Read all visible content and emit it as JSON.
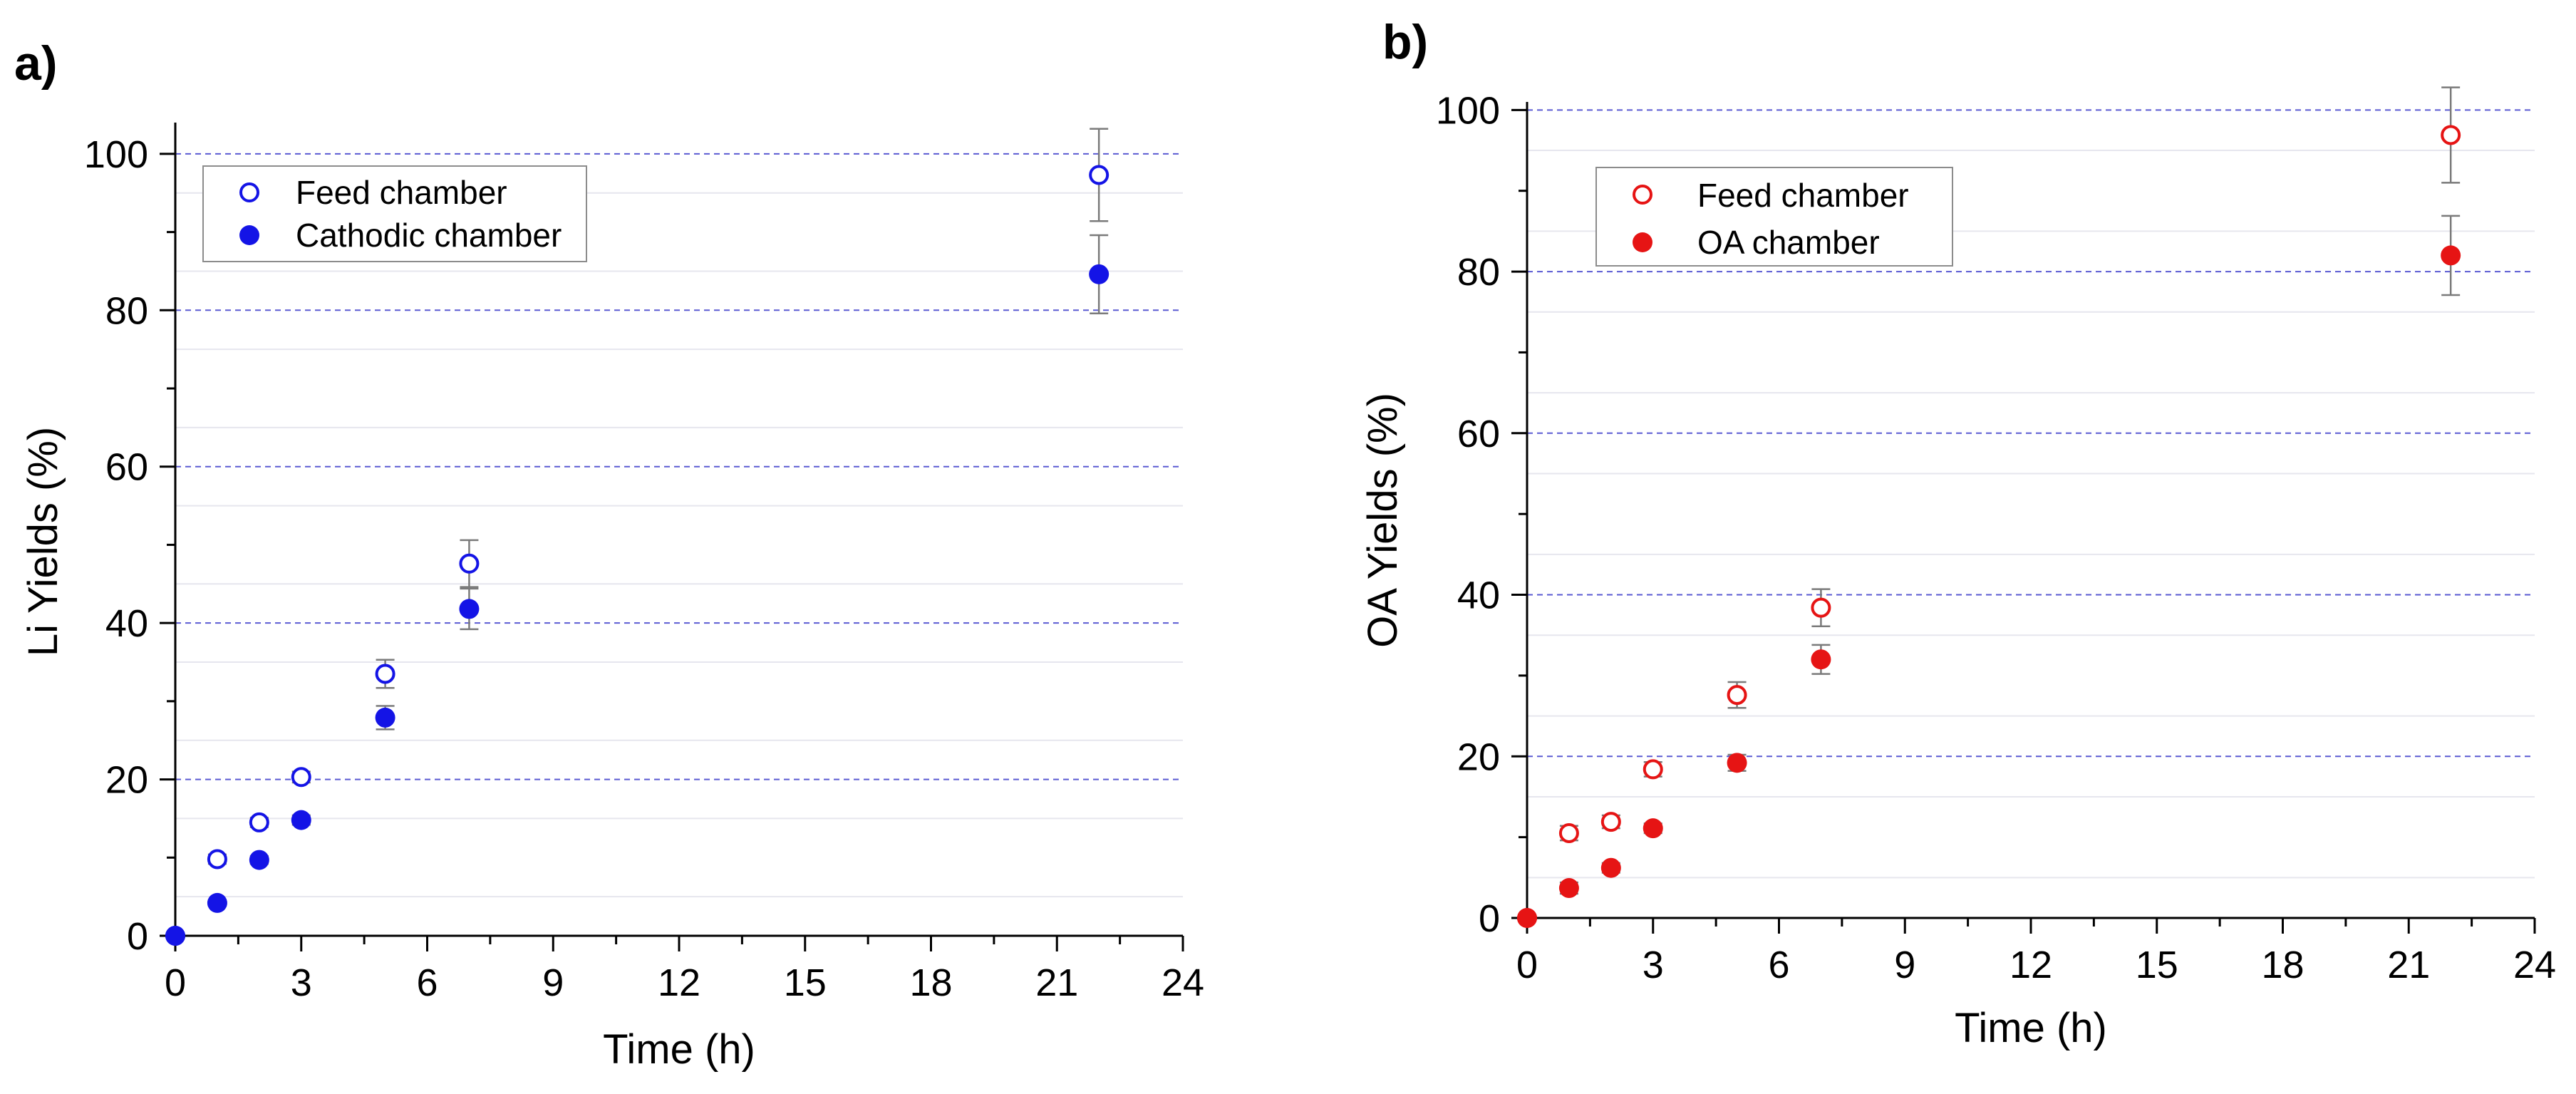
{
  "colors": {
    "panel_a_marker": "#1414e6",
    "panel_b_marker": "#e61414",
    "major_grid": "#5a5ad2",
    "minor_grid": "#e6e6ee",
    "error_bar": "#7a7a7a",
    "axis": "#000000"
  },
  "chart_data": [
    {
      "type": "scatter",
      "panel_label": "a)",
      "xlabel": "Time (h)",
      "ylabel": "Li Yields (%)",
      "xlim": [
        0,
        24
      ],
      "ylim": [
        0,
        104
      ],
      "xticks": [
        0,
        3,
        6,
        9,
        12,
        15,
        18,
        21,
        24
      ],
      "yticks": [
        0,
        20,
        40,
        60,
        80,
        100
      ],
      "grid": "horizontal dashed at major y ticks, faint minor lines",
      "legend_position": "top-left",
      "series": [
        {
          "name": "Feed chamber",
          "marker": "open-circle",
          "x": [
            0,
            1,
            2,
            3,
            5,
            7,
            22
          ],
          "y": [
            0,
            9.8,
            14.5,
            20.3,
            33.5,
            47.6,
            97.3
          ],
          "err": [
            0,
            0.6,
            0.6,
            0.7,
            1.8,
            3.0,
            5.9
          ]
        },
        {
          "name": "Cathodic chamber",
          "marker": "filled-circle",
          "x": [
            0,
            1,
            2,
            3,
            5,
            7,
            22
          ],
          "y": [
            0,
            4.2,
            9.7,
            14.8,
            27.9,
            41.8,
            84.6
          ],
          "err": [
            0,
            0.4,
            0.5,
            0.6,
            1.5,
            2.6,
            5.0
          ]
        }
      ]
    },
    {
      "type": "scatter",
      "panel_label": "b)",
      "xlabel": "Time (h)",
      "ylabel": "OA Yields (%)",
      "xlim": [
        0,
        24
      ],
      "ylim": [
        0,
        101
      ],
      "xticks": [
        0,
        3,
        6,
        9,
        12,
        15,
        18,
        21,
        24
      ],
      "yticks": [
        0,
        20,
        40,
        60,
        80,
        100
      ],
      "grid": "horizontal dashed at major y ticks, faint minor lines",
      "legend_position": "top-left",
      "series": [
        {
          "name": "Feed chamber",
          "marker": "open-circle",
          "x": [
            0,
            1,
            2,
            3,
            5,
            7,
            22
          ],
          "y": [
            0,
            10.5,
            11.9,
            18.4,
            27.6,
            38.4,
            96.9
          ],
          "err": [
            0,
            0.9,
            0.8,
            0.9,
            1.6,
            2.3,
            5.9
          ]
        },
        {
          "name": "OA chamber",
          "marker": "filled-circle",
          "x": [
            0,
            1,
            2,
            3,
            5,
            7,
            22
          ],
          "y": [
            0,
            3.7,
            6.2,
            11.1,
            19.2,
            32.0,
            82.0
          ],
          "err": [
            0,
            0.7,
            0.6,
            0.6,
            1.0,
            1.8,
            4.9
          ]
        }
      ]
    }
  ]
}
